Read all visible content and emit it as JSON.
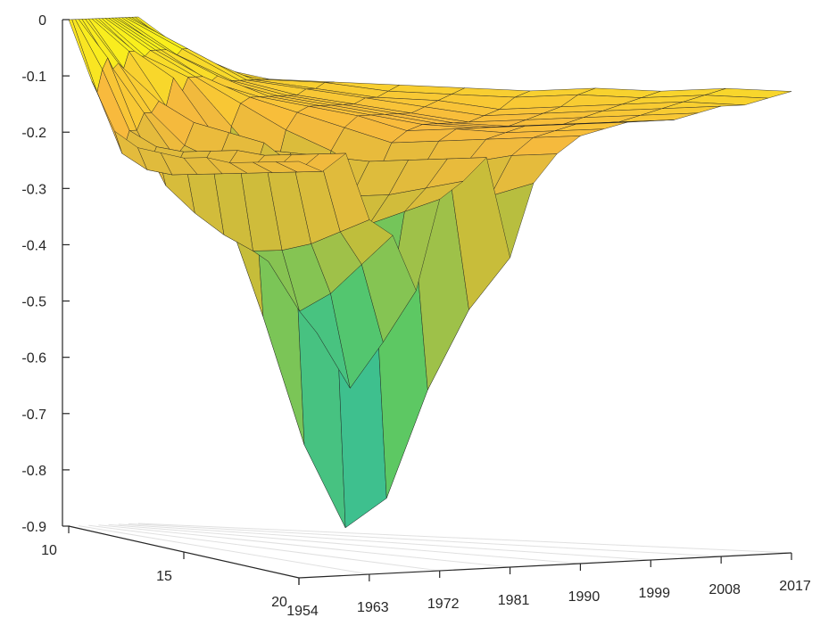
{
  "chart_data": {
    "type": "surface",
    "title": "",
    "xlabel": "",
    "ylabel": "",
    "zlabel": "",
    "x_ticks": [
      "1954",
      "1963",
      "1972",
      "1981",
      "1990",
      "1999",
      "2008",
      "2017"
    ],
    "y_ticks": [
      "10",
      "15",
      "20"
    ],
    "z_ticks": [
      "0",
      "-0.1",
      "-0.2",
      "-0.3",
      "-0.4",
      "-0.5",
      "-0.6",
      "-0.7",
      "-0.8",
      "-0.9"
    ],
    "xlim": [
      1954,
      2017
    ],
    "ylim": [
      10,
      20
    ],
    "zlim": [
      -0.9,
      0
    ],
    "grid": true,
    "colormap": [
      "#3e26a8",
      "#2e87f7",
      "#18b5c6",
      "#5bc864",
      "#c4bd3a",
      "#f8ba3d",
      "#f9fb15"
    ],
    "surface_x": [
      1954,
      1957,
      1960,
      1963,
      1966,
      1969,
      1972,
      1975,
      1978,
      1981,
      1984,
      1987,
      1990,
      1993,
      1996,
      1999,
      2002,
      2005,
      2008,
      2011,
      2014,
      2017
    ],
    "surface_y": [
      10,
      11,
      12,
      13,
      14,
      15,
      16,
      17,
      18,
      19,
      20
    ],
    "surface_z": [
      [
        0,
        0,
        0,
        0,
        0,
        0,
        0,
        0,
        0,
        0,
        0,
        0,
        0,
        0,
        0,
        0,
        0,
        0,
        0,
        0,
        0,
        0
      ],
      [
        -0.1,
        -0.12,
        -0.08,
        -0.06,
        -0.08,
        -0.07,
        -0.08,
        -0.05,
        -0.05,
        -0.06,
        -0.06,
        -0.05,
        -0.05,
        -0.05,
        -0.05,
        -0.06,
        -0.06,
        -0.05,
        -0.05,
        -0.06,
        -0.08,
        -0.08
      ],
      [
        -0.18,
        -0.22,
        -0.18,
        -0.18,
        -0.15,
        -0.15,
        -0.13,
        -0.14,
        -0.09,
        -0.12,
        -0.09,
        -0.09,
        -0.09,
        -0.1,
        -0.09,
        -0.1,
        -0.1,
        -0.1,
        -0.1,
        -0.1,
        -0.1,
        -0.1
      ],
      [
        -0.2,
        -0.24,
        -0.2,
        -0.27,
        -0.22,
        -0.2,
        -0.16,
        -0.22,
        -0.18,
        -0.3,
        -0.17,
        -0.13,
        -0.12,
        -0.12,
        -0.12,
        -0.12,
        -0.12,
        -0.12,
        -0.11,
        -0.11,
        -0.1,
        -0.1
      ],
      [
        -0.2,
        -0.24,
        -0.2,
        -0.31,
        -0.26,
        -0.22,
        -0.17,
        -0.24,
        -0.2,
        -0.5,
        -0.25,
        -0.17,
        -0.14,
        -0.13,
        -0.13,
        -0.13,
        -0.13,
        -0.13,
        -0.12,
        -0.12,
        -0.11,
        -0.1
      ],
      [
        -0.2,
        -0.23,
        -0.19,
        -0.34,
        -0.3,
        -0.25,
        -0.18,
        -0.25,
        -0.2,
        -0.72,
        -0.32,
        -0.2,
        -0.16,
        -0.14,
        -0.14,
        -0.14,
        -0.14,
        -0.14,
        -0.13,
        -0.12,
        -0.11,
        -0.1
      ],
      [
        -0.19,
        -0.22,
        -0.18,
        -0.36,
        -0.38,
        -0.35,
        -0.22,
        -0.26,
        -0.2,
        -0.86,
        -0.4,
        -0.24,
        -0.18,
        -0.16,
        -0.15,
        -0.15,
        -0.15,
        -0.15,
        -0.14,
        -0.13,
        -0.11,
        -0.1
      ],
      [
        -0.19,
        -0.21,
        -0.18,
        -0.35,
        -0.46,
        -0.5,
        -0.25,
        -0.26,
        -0.2,
        -0.8,
        -0.36,
        -0.22,
        -0.17,
        -0.15,
        -0.15,
        -0.15,
        -0.15,
        -0.14,
        -0.13,
        -0.12,
        -0.1,
        -0.09
      ],
      [
        -0.18,
        -0.2,
        -0.17,
        -0.33,
        -0.42,
        -0.59,
        -0.3,
        -0.25,
        -0.19,
        -0.6,
        -0.3,
        -0.2,
        -0.16,
        -0.15,
        -0.14,
        -0.14,
        -0.14,
        -0.13,
        -0.12,
        -0.11,
        -0.1,
        -0.09
      ],
      [
        -0.17,
        -0.19,
        -0.16,
        -0.3,
        -0.36,
        -0.5,
        -0.27,
        -0.23,
        -0.18,
        -0.45,
        -0.25,
        -0.18,
        -0.15,
        -0.14,
        -0.13,
        -0.13,
        -0.13,
        -0.12,
        -0.11,
        -0.1,
        -0.09,
        -0.08
      ],
      [
        -0.16,
        -0.18,
        -0.15,
        -0.27,
        -0.3,
        -0.4,
        -0.24,
        -0.21,
        -0.17,
        -0.35,
        -0.22,
        -0.17,
        -0.14,
        -0.13,
        -0.12,
        -0.12,
        -0.12,
        -0.11,
        -0.1,
        -0.1,
        -0.09,
        -0.08
      ]
    ]
  }
}
